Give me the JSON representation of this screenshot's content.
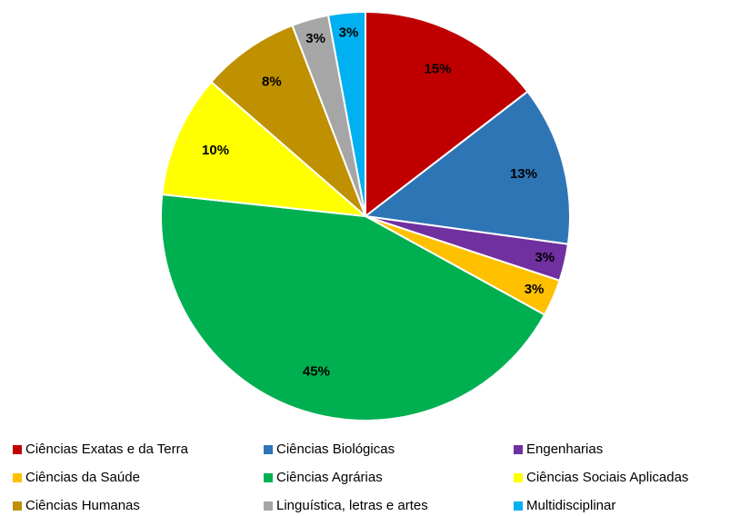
{
  "chart_data": {
    "type": "pie",
    "categories": [
      "Ciências Exatas e da Terra",
      "Ciências Biológicas",
      "Engenharias",
      "Ciências da Saúde",
      "Ciências Agrárias",
      "Ciências Sociais Aplicadas",
      "Ciências Humanas",
      "Linguística, letras e artes",
      "Multidisciplinar"
    ],
    "values": [
      15,
      13,
      3,
      3,
      45,
      10,
      8,
      3,
      3
    ],
    "value_labels": [
      "15%",
      "13%",
      "3%",
      "3%",
      "45%",
      "10%",
      "8%",
      "3%",
      "3%"
    ],
    "colors": [
      "#c00000",
      "#2e75b6",
      "#7030a0",
      "#ffc000",
      "#00b050",
      "#ffff00",
      "#bf9000",
      "#a6a6a6",
      "#00b0f0"
    ],
    "legend": "bottom"
  }
}
